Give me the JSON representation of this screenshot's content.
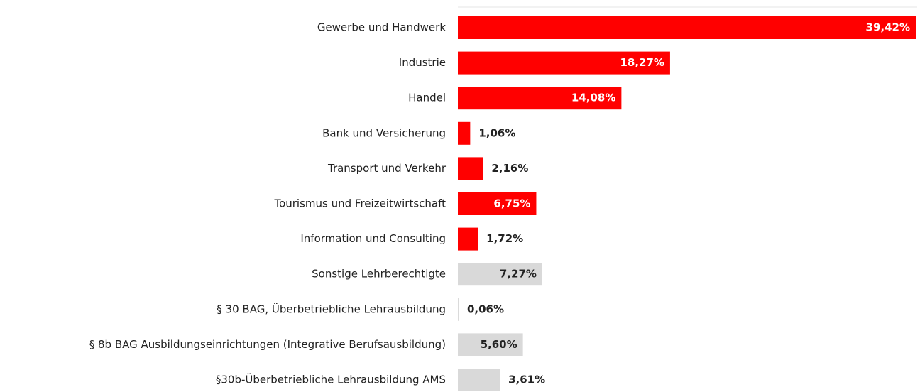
{
  "chart_data": {
    "type": "bar",
    "orientation": "horizontal",
    "categories": [
      "Gewerbe und Handwerk",
      "Industrie",
      "Handel",
      "Bank und Versicherung",
      "Transport und Verkehr",
      "Tourismus und Freizeitwirtschaft",
      "Information und Consulting",
      "Sonstige Lehrberechtigte",
      "§ 30 BAG, Überbetriebliche Lehrausbildung",
      "§ 8b BAG Ausbildungseinrichtungen (Integrative Berufsausbildung)",
      "§30b-Überbetriebliche Lehrausbildung AMS"
    ],
    "values": [
      39.42,
      18.27,
      14.08,
      1.06,
      2.16,
      6.75,
      1.72,
      7.27,
      0.06,
      5.6,
      3.61
    ],
    "value_labels": [
      "39,42%",
      "18,27%",
      "14,08%",
      "1,06%",
      "2,16%",
      "6,75%",
      "1,72%",
      "7,27%",
      "0,06%",
      "5,60%",
      "3,61%"
    ],
    "colors": [
      "#ff0000",
      "#ff0000",
      "#ff0000",
      "#ff0000",
      "#ff0000",
      "#ff0000",
      "#ff0000",
      "#d9d9d9",
      "#d9d9d9",
      "#d9d9d9",
      "#d9d9d9"
    ]
  }
}
